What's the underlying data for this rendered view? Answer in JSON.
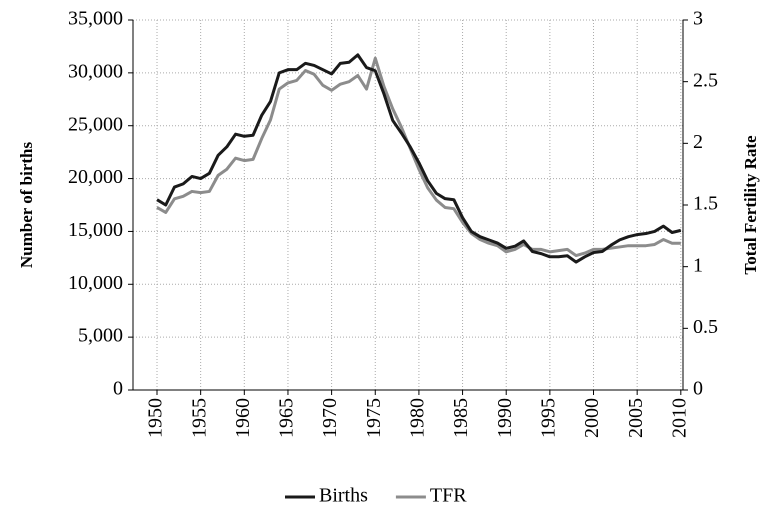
{
  "chart_data": {
    "type": "line",
    "y_label": "Number of births",
    "y2_label": "Total Fertility Rate",
    "x": [
      1950,
      1951,
      1952,
      1953,
      1954,
      1955,
      1956,
      1957,
      1958,
      1959,
      1960,
      1961,
      1962,
      1963,
      1964,
      1965,
      1966,
      1967,
      1968,
      1969,
      1970,
      1971,
      1972,
      1973,
      1974,
      1975,
      1976,
      1977,
      1978,
      1979,
      1980,
      1981,
      1982,
      1983,
      1984,
      1985,
      1986,
      1987,
      1988,
      1989,
      1990,
      1991,
      1992,
      1993,
      1994,
      1995,
      1996,
      1997,
      1998,
      1999,
      2000,
      2001,
      2002,
      2003,
      2004,
      2005,
      2006,
      2007,
      2008,
      2009,
      2010
    ],
    "series": [
      {
        "name": "Births",
        "color": "#1a1a1a",
        "values": [
          18000,
          17500,
          19200,
          19500,
          20200,
          20000,
          20500,
          22200,
          23000,
          24200,
          24000,
          24100,
          26000,
          27300,
          30000,
          30300,
          30300,
          30900,
          30700,
          30300,
          29900,
          30900,
          31000,
          31700,
          30500,
          30200,
          28000,
          25500,
          24300,
          23000,
          21500,
          19800,
          18600,
          18100,
          18000,
          16300,
          15000,
          14500,
          14200,
          13900,
          13400,
          13600,
          14100,
          13100,
          12900,
          12600,
          12600,
          12700,
          12100,
          12600,
          13000,
          13100,
          13700,
          14200,
          14500,
          14700,
          14800,
          15000,
          15500,
          14900,
          15100
        ]
      },
      {
        "name": "TFR",
        "color": "#8c8c8c",
        "axis": "y2",
        "values": [
          1.48,
          1.44,
          1.55,
          1.57,
          1.61,
          1.6,
          1.61,
          1.74,
          1.79,
          1.88,
          1.86,
          1.87,
          2.04,
          2.19,
          2.44,
          2.49,
          2.51,
          2.59,
          2.56,
          2.47,
          2.43,
          2.48,
          2.5,
          2.55,
          2.44,
          2.69,
          2.46,
          2.28,
          2.13,
          1.96,
          1.79,
          1.64,
          1.54,
          1.48,
          1.47,
          1.36,
          1.27,
          1.22,
          1.19,
          1.17,
          1.12,
          1.14,
          1.18,
          1.14,
          1.14,
          1.12,
          1.13,
          1.14,
          1.09,
          1.11,
          1.14,
          1.14,
          1.15,
          1.16,
          1.17,
          1.17,
          1.17,
          1.18,
          1.22,
          1.19,
          1.19
        ]
      }
    ],
    "xlim": [
      1947.25,
      2010.25
    ],
    "xticks": [
      1950,
      1955,
      1960,
      1965,
      1970,
      1975,
      1980,
      1985,
      1990,
      1995,
      2000,
      2005,
      2010
    ],
    "ylim": [
      0,
      35000
    ],
    "yticks": [
      0,
      {
        "value": 5000,
        "label": "5,000"
      },
      {
        "value": 10000,
        "label": "10,000"
      },
      {
        "value": 15000,
        "label": "15,000"
      },
      {
        "value": 20000,
        "label": "20,000"
      },
      {
        "value": 25000,
        "label": "25,000"
      },
      {
        "value": 30000,
        "label": "30,000"
      },
      {
        "value": 35000,
        "label": "35,000"
      }
    ],
    "y2lim": [
      0,
      3
    ],
    "y2ticks": [
      0,
      0.5,
      1,
      1.5,
      2,
      2.5,
      3
    ],
    "grid": true,
    "legend": "bottom"
  }
}
